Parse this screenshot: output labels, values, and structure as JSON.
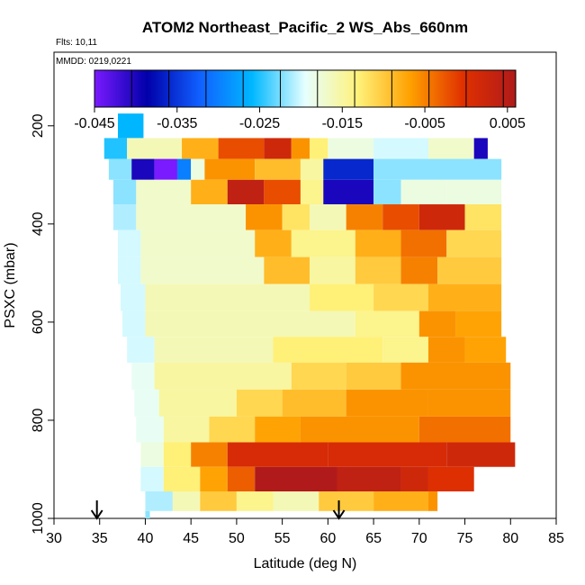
{
  "chart_data": {
    "type": "heatmap",
    "title": "ATOM2 Northeast_Pacific_2 WS_Abs_660nm",
    "flights_note": "Flts: 10,11",
    "date_note": "MMDD: 0219,0221",
    "xlabel": "Latitude (deg N)",
    "ylabel": "PSXC (mbar)",
    "xlim": [
      30,
      85
    ],
    "ylim": [
      1000,
      50
    ],
    "x_ticks": [
      "30",
      "35",
      "40",
      "45",
      "50",
      "55",
      "60",
      "65",
      "70",
      "75",
      "80",
      "85"
    ],
    "y_ticks": [
      "200",
      "400",
      "600",
      "800",
      "1000"
    ],
    "colorbar": {
      "min": -0.045,
      "max": 0.006,
      "tick_labels": [
        "-0.045",
        "-0.035",
        "-0.025",
        "-0.015",
        "-0.005",
        "0.005"
      ],
      "tick_values": [
        -0.045,
        -0.035,
        -0.025,
        -0.015,
        -0.005,
        0.005
      ],
      "colors": [
        "#7a1aff",
        "#0000aa",
        "#1060ff",
        "#00b8ff",
        "#e6ffff",
        "#fff27a",
        "#ffa000",
        "#e03000",
        "#b01a1a"
      ]
    },
    "arrows_lat": [
      34.7,
      61.2
    ],
    "bands": [
      {
        "p": 200,
        "segments": [
          [
            37,
            39.8,
            -0.026
          ]
        ]
      },
      {
        "p": 250,
        "segments": [
          [
            35.5,
            38,
            -0.025
          ],
          [
            38,
            44,
            -0.016
          ],
          [
            44,
            48,
            -0.008
          ],
          [
            48,
            53,
            -0.002
          ],
          [
            53,
            56,
            0.002
          ],
          [
            56,
            58,
            -0.006
          ],
          [
            58,
            60,
            -0.013
          ],
          [
            60,
            65,
            -0.018
          ],
          [
            65,
            71,
            -0.02
          ],
          [
            71,
            76,
            -0.017
          ],
          [
            76,
            77.5,
            -0.04
          ]
        ]
      },
      {
        "p": 285,
        "segments": [
          [
            36,
            38.5,
            -0.022
          ],
          [
            38.5,
            41,
            -0.04
          ],
          [
            41,
            43.5,
            -0.045
          ],
          [
            43.5,
            45,
            -0.03
          ],
          [
            45,
            46.5,
            -0.018
          ],
          [
            46.5,
            52,
            -0.006
          ],
          [
            52,
            57,
            -0.009
          ],
          [
            57,
            59.5,
            -0.015
          ],
          [
            59.5,
            65,
            -0.036
          ],
          [
            65,
            79,
            -0.022
          ]
        ]
      },
      {
        "p": 335,
        "segments": [
          [
            36.5,
            39,
            -0.022
          ],
          [
            39,
            45,
            -0.017
          ],
          [
            45,
            49,
            -0.008
          ],
          [
            49,
            53,
            0.004
          ],
          [
            53,
            57,
            -0.002
          ],
          [
            57,
            59.5,
            -0.014
          ],
          [
            59.5,
            65,
            -0.04
          ],
          [
            65,
            68,
            -0.022
          ],
          [
            68,
            73,
            -0.018
          ],
          [
            73,
            79,
            -0.018
          ]
        ]
      },
      {
        "p": 385,
        "segments": [
          [
            36.5,
            39,
            -0.021
          ],
          [
            39,
            51,
            -0.017
          ],
          [
            51,
            55,
            -0.006
          ],
          [
            55,
            58,
            -0.012
          ],
          [
            58,
            62,
            -0.016
          ],
          [
            62,
            66,
            -0.005
          ],
          [
            66,
            70,
            -0.002
          ],
          [
            70,
            75,
            0.002
          ],
          [
            75,
            79,
            -0.012
          ]
        ]
      },
      {
        "p": 440,
        "segments": [
          [
            37,
            39.5,
            -0.02
          ],
          [
            39.5,
            52,
            -0.017
          ],
          [
            52,
            56,
            -0.008
          ],
          [
            56,
            63,
            -0.014
          ],
          [
            63,
            68,
            -0.008
          ],
          [
            68,
            73,
            -0.004
          ],
          [
            73,
            79,
            -0.011
          ]
        ]
      },
      {
        "p": 495,
        "segments": [
          [
            37,
            39.5,
            -0.02
          ],
          [
            39.5,
            53,
            -0.017
          ],
          [
            53,
            58,
            -0.009
          ],
          [
            58,
            63,
            -0.015
          ],
          [
            63,
            68,
            -0.01
          ],
          [
            68,
            72,
            -0.005
          ],
          [
            72,
            79,
            -0.01
          ]
        ]
      },
      {
        "p": 550,
        "segments": [
          [
            37.3,
            40,
            -0.02
          ],
          [
            40,
            58,
            -0.016
          ],
          [
            58,
            65,
            -0.013
          ],
          [
            65,
            71,
            -0.011
          ],
          [
            71,
            79,
            -0.008
          ]
        ]
      },
      {
        "p": 605,
        "segments": [
          [
            37.5,
            40,
            -0.02
          ],
          [
            40,
            63,
            -0.016
          ],
          [
            63,
            70,
            -0.014
          ],
          [
            70,
            74,
            -0.006
          ],
          [
            74,
            79,
            -0.007
          ]
        ]
      },
      {
        "p": 655,
        "segments": [
          [
            38,
            41,
            -0.02
          ],
          [
            41,
            54,
            -0.016
          ],
          [
            54,
            66,
            -0.013
          ],
          [
            66,
            71,
            -0.014
          ],
          [
            71,
            75,
            -0.006
          ],
          [
            75,
            79.5,
            -0.007
          ]
        ]
      },
      {
        "p": 710,
        "segments": [
          [
            38.5,
            41,
            -0.019
          ],
          [
            41,
            56,
            -0.015
          ],
          [
            56,
            62,
            -0.011
          ],
          [
            62,
            68,
            -0.01
          ],
          [
            68,
            80,
            -0.006
          ]
        ]
      },
      {
        "p": 765,
        "segments": [
          [
            38.8,
            41.5,
            -0.019
          ],
          [
            41.5,
            50,
            -0.015
          ],
          [
            50,
            55,
            -0.011
          ],
          [
            55,
            62,
            -0.009
          ],
          [
            62,
            71,
            -0.006
          ],
          [
            71,
            80,
            -0.006
          ]
        ]
      },
      {
        "p": 820,
        "segments": [
          [
            39,
            42,
            -0.019
          ],
          [
            42,
            47,
            -0.015
          ],
          [
            47,
            52,
            -0.011
          ],
          [
            52,
            57,
            -0.007
          ],
          [
            57,
            70,
            -0.006
          ],
          [
            70,
            80,
            -0.004
          ]
        ]
      },
      {
        "p": 870,
        "segments": [
          [
            39.5,
            42,
            -0.018
          ],
          [
            42,
            45,
            -0.013
          ],
          [
            45,
            49,
            -0.005
          ],
          [
            49,
            60,
            0.001
          ],
          [
            60,
            73,
            0.001
          ],
          [
            73,
            80.5,
            0.002
          ]
        ]
      },
      {
        "p": 920,
        "segments": [
          [
            39.5,
            42,
            -0.02
          ],
          [
            42,
            46,
            -0.013
          ],
          [
            46,
            49,
            -0.007
          ],
          [
            49,
            52,
            -0.003
          ],
          [
            52,
            61,
            0.006
          ],
          [
            61,
            68,
            0.004
          ],
          [
            68,
            71,
            0.002
          ],
          [
            71,
            76,
            0.0
          ]
        ]
      },
      {
        "p": 970,
        "segments": [
          [
            40,
            43,
            -0.021
          ],
          [
            43,
            46,
            -0.016
          ],
          [
            46,
            50,
            -0.01
          ],
          [
            50,
            54,
            -0.014
          ],
          [
            54,
            59,
            -0.016
          ],
          [
            59,
            65,
            -0.01
          ],
          [
            65,
            71,
            -0.008
          ],
          [
            71,
            72,
            -0.006
          ]
        ]
      },
      {
        "p": 1000,
        "segments": [
          [
            40,
            40.5,
            -0.022
          ]
        ]
      }
    ]
  }
}
